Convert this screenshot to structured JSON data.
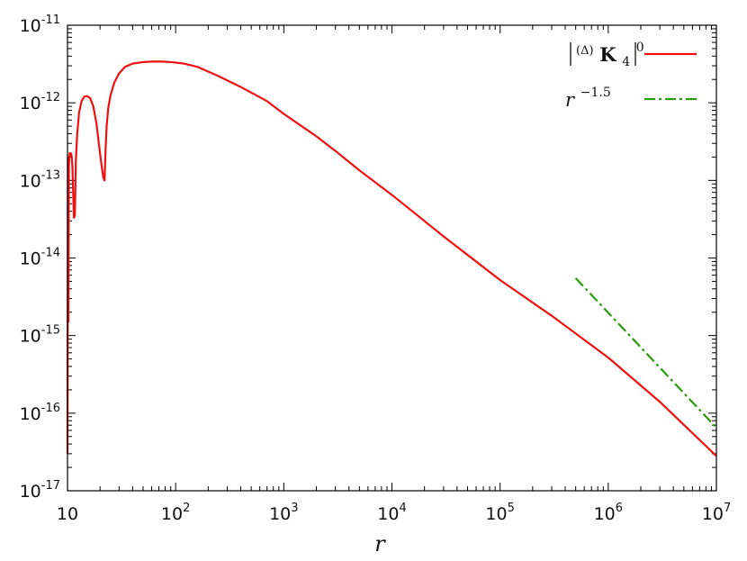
{
  "chart_data": {
    "type": "line",
    "title": "",
    "xlabel": "r",
    "ylabel": "",
    "xscale": "log",
    "yscale": "log",
    "xlim": [
      10,
      10000000
    ],
    "ylim": [
      1e-17,
      1e-11
    ],
    "grid": false,
    "legend_position": "top-right",
    "x_ticks": [
      {
        "value": 10,
        "base": "10",
        "exp": ""
      },
      {
        "value": 100,
        "base": "10",
        "exp": "2"
      },
      {
        "value": 1000,
        "base": "10",
        "exp": "3"
      },
      {
        "value": 10000,
        "base": "10",
        "exp": "4"
      },
      {
        "value": 100000,
        "base": "10",
        "exp": "5"
      },
      {
        "value": 1000000,
        "base": "10",
        "exp": "6"
      },
      {
        "value": 10000000,
        "base": "10",
        "exp": "7"
      }
    ],
    "y_ticks": [
      {
        "value": 1e-11,
        "base": "10",
        "exp": "-11"
      },
      {
        "value": 1e-12,
        "base": "10",
        "exp": "-12"
      },
      {
        "value": 1e-13,
        "base": "10",
        "exp": "-13"
      },
      {
        "value": 1e-14,
        "base": "10",
        "exp": "-14"
      },
      {
        "value": 1e-15,
        "base": "10",
        "exp": "-15"
      },
      {
        "value": 1e-16,
        "base": "10",
        "exp": "-16"
      },
      {
        "value": 1e-17,
        "base": "10",
        "exp": "-17"
      }
    ],
    "series": [
      {
        "name": "|(Δ)K40|",
        "legend_pre": "(Δ)",
        "legend_main": "K",
        "legend_sub": "4",
        "legend_sup": "0",
        "color": "#ee1111",
        "style": "solid",
        "x": [
          10.0,
          10.1,
          10.2,
          10.3,
          10.4,
          10.5,
          10.65,
          10.8,
          10.95,
          11.1,
          11.25,
          11.45,
          11.7,
          11.95,
          12.3,
          12.8,
          13.5,
          14.3,
          15.2,
          16.2,
          17.3,
          18.5,
          19.6,
          20.6,
          21.4,
          22.0,
          22.5,
          23.0,
          23.8,
          25.0,
          27.0,
          30.0,
          34.0,
          40.0,
          50.0,
          60.0,
          75.0,
          90.0,
          120.0,
          160.0,
          250.0,
          400.0,
          700.0,
          1000.0,
          2000.0,
          3000.0,
          5000.0,
          10000.0,
          30000.0,
          100000.0,
          300000.0,
          1000000.0,
          3000000.0,
          10000000.0
        ],
        "y": [
          3e-17,
          2e-13,
          1.5e-15,
          1.5e-13,
          2e-13,
          2.25e-13,
          2.25e-13,
          2.2e-13,
          2e-13,
          1.5e-13,
          8e-14,
          3.3e-14,
          3.5e-14,
          1.8e-13,
          4e-13,
          7.5e-13,
          1.05e-12,
          1.2e-12,
          1.22e-12,
          1.15e-12,
          9e-13,
          5.5e-13,
          2.8e-13,
          1.6e-13,
          1.1e-13,
          1e-13,
          2.5e-13,
          5e-13,
          8.5e-13,
          1.25e-12,
          1.8e-12,
          2.4e-12,
          2.9e-12,
          3.2e-12,
          3.35e-12,
          3.4e-12,
          3.4e-12,
          3.35e-12,
          3.2e-12,
          2.9e-12,
          2.2e-12,
          1.6e-12,
          1.05e-12,
          7.2e-13,
          3.7e-13,
          2.4e-13,
          1.35e-13,
          6.5e-14,
          1.9e-14,
          5.2e-15,
          1.8e-15,
          5.2e-16,
          1.4e-16,
          2.8e-17
        ]
      },
      {
        "name": "r^{-1.5}",
        "legend_base": "r",
        "legend_sup": "−1.5",
        "color": "#2a9a0e",
        "style": "dash-dot",
        "x": [
          500000.0,
          10000000.0
        ],
        "y": [
          5.5e-15,
          6.5e-17
        ]
      }
    ]
  }
}
